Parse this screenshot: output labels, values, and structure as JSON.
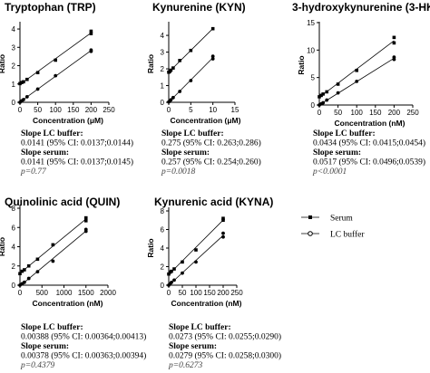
{
  "chart_data": [
    {
      "type": "scatter",
      "title": "Tryptophan  (TRP)",
      "xlabel": "Concentration  (μM)",
      "ylabel": "Ratio",
      "xlim": [
        0,
        250
      ],
      "ylim": [
        0,
        4.2
      ],
      "xticks": [
        "0",
        "50",
        "100",
        "150",
        "200",
        "250"
      ],
      "yticks": [
        "0",
        "1",
        "2",
        "3",
        "4"
      ],
      "series": [
        {
          "name": "Serum",
          "marker": "square",
          "x": [
            0,
            5,
            10,
            20,
            50,
            100,
            200,
            200
          ],
          "y": [
            1.02,
            1.08,
            1.12,
            1.25,
            1.62,
            2.3,
            3.75,
            3.88
          ]
        },
        {
          "name": "LC buffer",
          "marker": "circle",
          "x": [
            0,
            5,
            10,
            20,
            50,
            100,
            200,
            200
          ],
          "y": [
            0.0,
            0.08,
            0.15,
            0.3,
            0.72,
            1.45,
            2.78,
            2.85
          ]
        }
      ],
      "stats": {
        "lc_label": "Slope LC buffer:",
        "lc_value": "0.0141 (95% CI: 0.0137;0.0144)",
        "serum_label": "Slope serum:",
        "serum_value": "0.0141 (95% CI: 0.0137;0.0145)",
        "p": "p=0.77"
      }
    },
    {
      "type": "scatter",
      "title": "Kynurenine  (KYN)",
      "xlabel": "Concentration  (μM)",
      "ylabel": "Ratio",
      "xlim": [
        0,
        15
      ],
      "ylim": [
        0,
        4.6
      ],
      "xticks": [
        "0",
        "5",
        "10",
        "15"
      ],
      "yticks": [
        "0",
        "1",
        "2",
        "3",
        "4"
      ],
      "series": [
        {
          "name": "Serum",
          "marker": "square",
          "x": [
            0,
            0.25,
            0.5,
            1,
            2.5,
            5,
            10
          ],
          "y": [
            1.8,
            1.85,
            1.92,
            2.05,
            2.5,
            3.1,
            4.4
          ]
        },
        {
          "name": "LC buffer",
          "marker": "circle",
          "x": [
            0,
            0.25,
            0.5,
            1,
            2.5,
            5,
            10,
            10
          ],
          "y": [
            0.02,
            0.08,
            0.15,
            0.28,
            0.65,
            1.3,
            2.6,
            2.75
          ]
        }
      ],
      "stats": {
        "lc_label": "Slope LC buffer:",
        "lc_value": "0.275 (95% CI: 0.263;0.286)",
        "serum_label": "Slope serum:",
        "serum_value": "0.257 (95% CI: 0.254;0.260)",
        "p": "p=0.0018"
      }
    },
    {
      "type": "scatter",
      "title": "3-hydroxykynurenine  (3-HK)",
      "xlabel": "Concentration  (nM)",
      "ylabel": "Ratio",
      "xlim": [
        0,
        250
      ],
      "ylim": [
        0,
        14.5
      ],
      "xticks": [
        "0",
        "50",
        "100",
        "150",
        "200",
        "250"
      ],
      "yticks": [
        "0",
        "5",
        "10",
        "15"
      ],
      "series": [
        {
          "name": "Serum",
          "marker": "square",
          "x": [
            0,
            5,
            10,
            20,
            50,
            100,
            200,
            200
          ],
          "y": [
            1.5,
            1.75,
            2.0,
            2.4,
            3.8,
            6.3,
            11.3,
            12.3
          ]
        },
        {
          "name": "LC buffer",
          "marker": "circle",
          "x": [
            0,
            5,
            10,
            20,
            50,
            100,
            200,
            200
          ],
          "y": [
            0.0,
            0.2,
            0.4,
            0.9,
            2.2,
            4.3,
            8.3,
            8.7
          ]
        }
      ],
      "stats": {
        "lc_label": "Slope LC buffer:",
        "lc_value": "0.0434 (95% CI: 0.0415;0.0454)",
        "serum_label": "Slope serum:",
        "serum_value": "0.0517 (95% CI: 0.0496;0.0539)",
        "p": "p<0.0001"
      }
    },
    {
      "type": "scatter",
      "title": "Quinolinic acid  (QUIN)",
      "xlabel": "Concentration  (nM)",
      "ylabel": "Ratio",
      "xlim": [
        0,
        2000
      ],
      "ylim": [
        0,
        8
      ],
      "xticks": [
        "0",
        "500",
        "1000",
        "1500",
        "2000"
      ],
      "yticks": [
        "0",
        "2",
        "4",
        "6",
        "8"
      ],
      "series": [
        {
          "name": "Serum",
          "marker": "square",
          "x": [
            0,
            50,
            100,
            200,
            400,
            750,
            1500,
            1500
          ],
          "y": [
            1.2,
            1.45,
            1.6,
            2.0,
            2.7,
            4.2,
            6.7,
            7.0
          ]
        },
        {
          "name": "LC buffer",
          "marker": "circle",
          "x": [
            0,
            50,
            100,
            200,
            400,
            750,
            1500,
            1500
          ],
          "y": [
            0.0,
            0.15,
            0.3,
            0.7,
            1.4,
            2.5,
            5.6,
            5.8
          ]
        }
      ],
      "stats": {
        "lc_label": "Slope LC buffer:",
        "lc_value": "0.00388 (95% CI: 0.00364;0.00413)",
        "serum_label": "Slope serum:",
        "serum_value": "0.00378 (95% CI: 0.00363;0.00394)",
        "p": "p=0.4379"
      }
    },
    {
      "type": "scatter",
      "title": "Kynurenic acid  (KYNA)",
      "xlabel": "Concentration  (nM)",
      "ylabel": "Ratio",
      "xlim": [
        0,
        250
      ],
      "ylim": [
        0,
        8
      ],
      "xticks": [
        "0",
        "50",
        "100",
        "150",
        "200",
        "250"
      ],
      "yticks": [
        "0",
        "2",
        "4",
        "6",
        "8"
      ],
      "series": [
        {
          "name": "Serum",
          "marker": "square",
          "x": [
            0,
            5,
            10,
            20,
            50,
            100,
            200,
            200
          ],
          "y": [
            1.2,
            1.4,
            1.5,
            1.75,
            2.5,
            3.8,
            7.0,
            7.2
          ]
        },
        {
          "name": "LC buffer",
          "marker": "circle",
          "x": [
            0,
            5,
            10,
            20,
            50,
            100,
            200,
            200
          ],
          "y": [
            0.0,
            0.15,
            0.3,
            0.55,
            1.3,
            2.5,
            5.2,
            5.6
          ]
        }
      ],
      "stats": {
        "lc_label": "Slope LC buffer:",
        "lc_value": "0.0273 (95% CI: 0.0255;0.0290)",
        "serum_label": "Slope serum:",
        "serum_value": "0.0279 (95% CI: 0.0258;0.0300)",
        "p": "p=0.6273"
      }
    }
  ],
  "legend": {
    "placement": "right",
    "items": [
      {
        "label": "Serum",
        "marker": "square"
      },
      {
        "label": "LC buffer",
        "marker": "circle"
      }
    ]
  }
}
